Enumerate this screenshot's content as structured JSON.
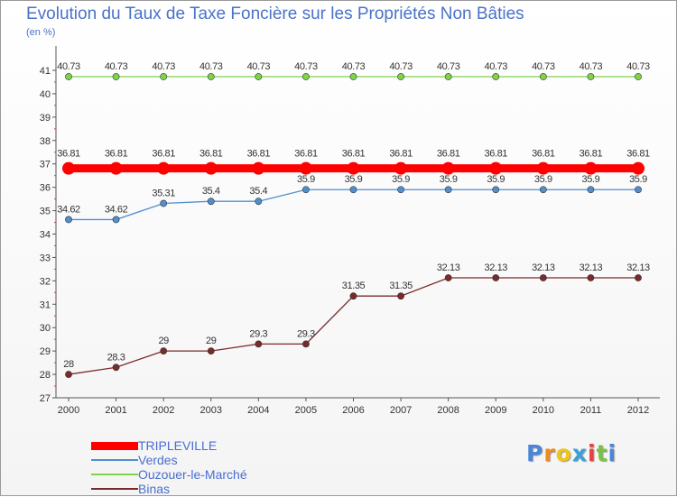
{
  "chart_data": {
    "type": "line",
    "title": "Evolution du Taux de Taxe Foncière sur les Propriétés Non Bâties",
    "subtitle": "(en %)",
    "x": [
      "2000",
      "2001",
      "2002",
      "2003",
      "2004",
      "2005",
      "2006",
      "2007",
      "2008",
      "2009",
      "2010",
      "2011",
      "2012"
    ],
    "ylim": [
      27,
      41
    ],
    "yticks": [
      "27",
      "28",
      "29",
      "30",
      "31",
      "32",
      "33",
      "34",
      "35",
      "36",
      "37",
      "38",
      "39",
      "40",
      "41"
    ],
    "grid": false,
    "legend": "bottom-left",
    "series": [
      {
        "name": "TRIPLEVILLE",
        "color": "#ff0000",
        "bold": true,
        "values": [
          36.81,
          36.81,
          36.81,
          36.81,
          36.81,
          36.81,
          36.81,
          36.81,
          36.81,
          36.81,
          36.81,
          36.81,
          36.81
        ],
        "labels": [
          "36.81",
          "36.81",
          "36.81",
          "36.81",
          "36.81",
          "36.81",
          "36.81",
          "36.81",
          "36.81",
          "36.81",
          "36.81",
          "36.81",
          "36.81"
        ]
      },
      {
        "name": "Verdes",
        "color": "#4f8fcf",
        "bold": false,
        "values": [
          34.62,
          34.62,
          35.31,
          35.4,
          35.4,
          35.9,
          35.9,
          35.9,
          35.9,
          35.9,
          35.9,
          35.9,
          35.9
        ],
        "labels": [
          "34.62",
          "34.62",
          "35.31",
          "35.4",
          "35.4",
          "35.9",
          "35.9",
          "35.9",
          "35.9",
          "35.9",
          "35.9",
          "35.9",
          "35.9"
        ]
      },
      {
        "name": "Ouzouer-le-Marché",
        "color": "#7fd34a",
        "bold": false,
        "values": [
          40.73,
          40.73,
          40.73,
          40.73,
          40.73,
          40.73,
          40.73,
          40.73,
          40.73,
          40.73,
          40.73,
          40.73,
          40.73
        ],
        "labels": [
          "40.73",
          "40.73",
          "40.73",
          "40.73",
          "40.73",
          "40.73",
          "40.73",
          "40.73",
          "40.73",
          "40.73",
          "40.73",
          "40.73",
          "40.73"
        ]
      },
      {
        "name": "Binas",
        "color": "#7a2a2a",
        "bold": false,
        "values": [
          28,
          28.3,
          29,
          29,
          29.3,
          29.3,
          31.35,
          31.35,
          32.13,
          32.13,
          32.13,
          32.13,
          32.13
        ],
        "labels": [
          "28",
          "28.3",
          "29",
          "29",
          "29.3",
          "29.3",
          "31.35",
          "31.35",
          "32.13",
          "32.13",
          "32.13",
          "32.13",
          "32.13"
        ]
      }
    ]
  },
  "logo": {
    "letters": [
      "P",
      "r",
      "o",
      "x",
      "i",
      "t",
      "i"
    ],
    "colors": [
      "#4a86d8",
      "#f08a1c",
      "#f0c419",
      "#3aa0d8",
      "#e84040",
      "#7cc242",
      "#4a86d8"
    ]
  }
}
